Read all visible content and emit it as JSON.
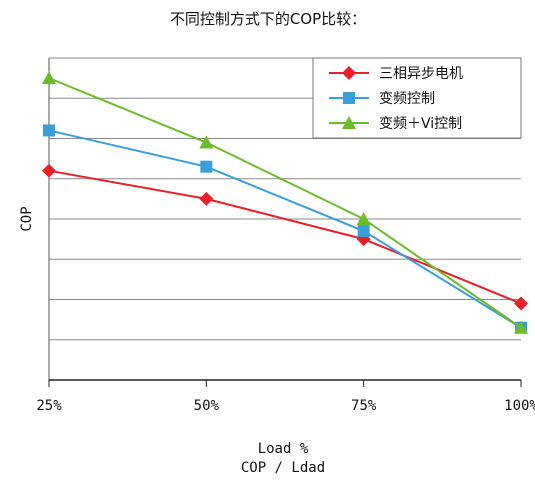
{
  "chart_data": {
    "type": "line",
    "title": "不同控制方式下的COP比较：",
    "xlabel": "Load %",
    "xlabel2": "COP / Ldad",
    "ylabel": "COP",
    "categories": [
      "25%",
      "50%",
      "75%",
      "100%"
    ],
    "ylim": [
      0,
      8
    ],
    "grid": true,
    "legend_position": "top-right",
    "series": [
      {
        "name": "三相异步电机",
        "values": [
          5.2,
          4.5,
          3.5,
          1.9
        ],
        "color": "#e8202a",
        "marker": "diamond"
      },
      {
        "name": "变频控制",
        "values": [
          6.2,
          5.3,
          3.7,
          1.3
        ],
        "color": "#3a9ed8",
        "marker": "square"
      },
      {
        "name": "变频＋Vi控制",
        "values": [
          7.5,
          5.9,
          4.0,
          1.3
        ],
        "color": "#6cbb2a",
        "marker": "triangle"
      }
    ]
  }
}
